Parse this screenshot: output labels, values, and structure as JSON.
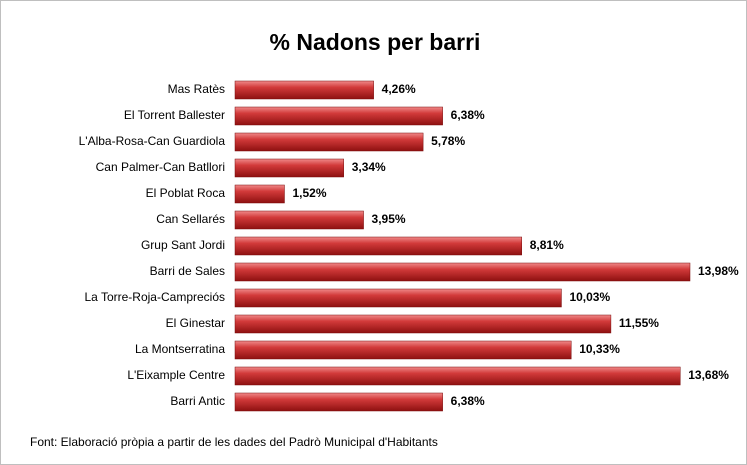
{
  "chart_data": {
    "type": "bar",
    "orientation": "horizontal",
    "title": "% Nadons per barri",
    "categories": [
      "Mas Ratès",
      "El Torrent Ballester",
      "L'Alba-Rosa-Can Guardiola",
      "Can Palmer-Can Batllori",
      "El Poblat Roca",
      "Can Sellarés",
      "Grup Sant Jordi",
      "Barri de Sales",
      "La Torre-Roja-Campreciós",
      "El Ginestar",
      "La Montserratina",
      "L'Eixample Centre",
      "Barri Antic"
    ],
    "values": [
      4.26,
      6.38,
      5.78,
      3.34,
      1.52,
      3.95,
      8.81,
      13.98,
      10.03,
      11.55,
      10.33,
      13.68,
      6.38
    ],
    "value_labels": [
      "4,26%",
      "6,38%",
      "5,78%",
      "3,34%",
      "1,52%",
      "3,95%",
      "8,81%",
      "13,98%",
      "10,03%",
      "11,55%",
      "10,33%",
      "13,68%",
      "6,38%"
    ],
    "color": "#c0282d",
    "source": "Font: Elaboració pròpia a partir de les dades del Padrò Municipal d'Habitants"
  }
}
